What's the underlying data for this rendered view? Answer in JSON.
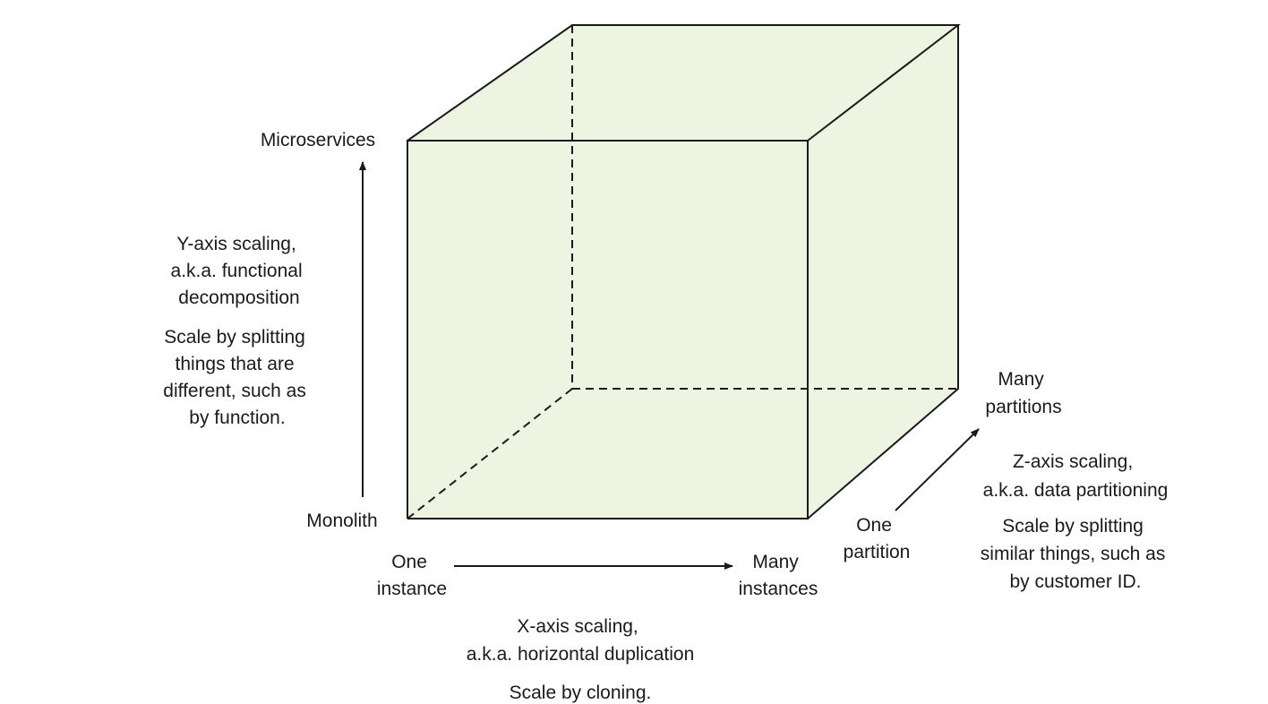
{
  "colors": {
    "cube_fill": "#eef4e2",
    "line": "#1a1a1a",
    "background": "#ffffff"
  },
  "y_axis": {
    "top_label": "Microservices",
    "bottom_label": "Monolith",
    "title_lines": [
      "Y-axis scaling,",
      "a.k.a. functional",
      "decomposition"
    ],
    "description_lines": [
      "Scale by splitting",
      "things that are",
      "different, such as",
      "by function."
    ]
  },
  "x_axis": {
    "start_label_lines": [
      "One",
      "instance"
    ],
    "end_label_lines": [
      "Many",
      "instances"
    ],
    "title_lines": [
      "X-axis scaling,",
      "a.k.a. horizontal duplication"
    ],
    "description_lines": [
      "Scale by cloning."
    ]
  },
  "z_axis": {
    "start_label_lines": [
      "One",
      "partition"
    ],
    "end_label_lines": [
      "Many",
      "partitions"
    ],
    "title_lines": [
      "Z-axis scaling,",
      "a.k.a. data partitioning"
    ],
    "description_lines": [
      "Scale by splitting",
      "similar things, such as",
      "by customer ID."
    ]
  }
}
